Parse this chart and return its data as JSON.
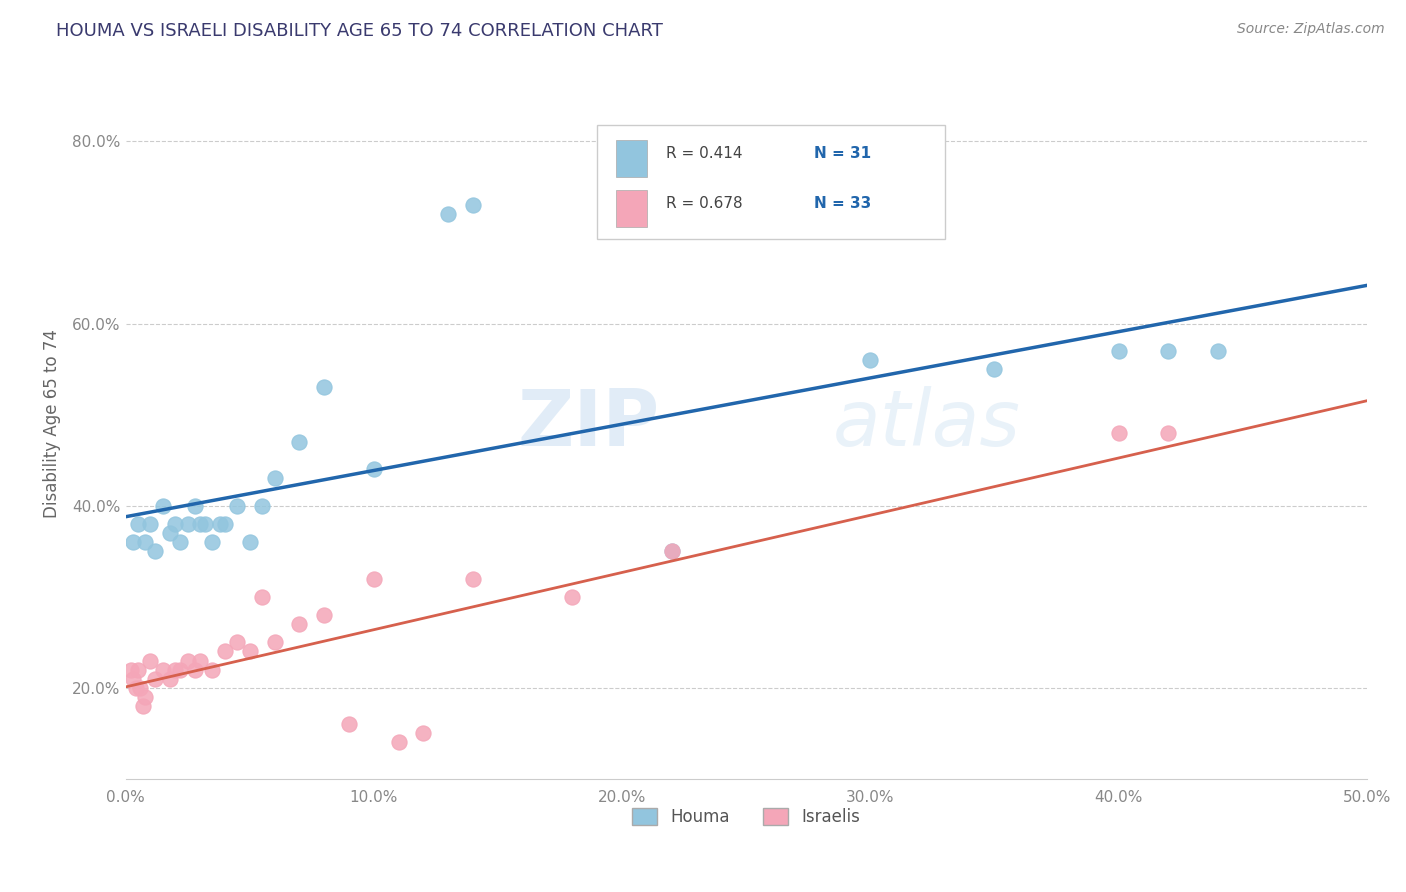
{
  "title": "HOUMA VS ISRAELI DISABILITY AGE 65 TO 74 CORRELATION CHART",
  "source_text": "Source: ZipAtlas.com",
  "ylabel": "Disability Age 65 to 74",
  "legend_label1": "Houma",
  "legend_label2": "Israelis",
  "legend_r1": "R = 0.414",
  "legend_n1": "N = 31",
  "legend_r2": "R = 0.678",
  "legend_n2": "N = 33",
  "xlim": [
    0.0,
    50.0
  ],
  "ylim": [
    10.0,
    88.0
  ],
  "xticks": [
    0,
    10,
    20,
    30,
    40,
    50
  ],
  "yticks": [
    20,
    40,
    60,
    80
  ],
  "blue_scatter_color": "#92c5de",
  "pink_scatter_color": "#f4a6b8",
  "blue_line_color": "#2166ac",
  "pink_line_color": "#d6604d",
  "watermark_color": "#c8d8e8",
  "title_color": "#3a3a6e",
  "source_color": "#888888",
  "axis_label_color": "#666666",
  "tick_color": "#888888",
  "grid_color": "#cccccc",
  "background_color": "#ffffff",
  "houma_x": [
    0.3,
    0.5,
    0.8,
    1.0,
    1.2,
    1.5,
    1.8,
    2.0,
    2.2,
    2.5,
    2.8,
    3.0,
    3.2,
    3.5,
    3.8,
    4.0,
    4.5,
    5.0,
    5.5,
    6.0,
    7.0,
    8.0,
    10.0,
    13.0,
    14.0,
    22.0,
    30.0,
    35.0,
    40.0,
    42.0,
    44.0
  ],
  "houma_y": [
    36.0,
    38.0,
    36.0,
    38.0,
    35.0,
    40.0,
    37.0,
    38.0,
    36.0,
    38.0,
    40.0,
    38.0,
    38.0,
    36.0,
    38.0,
    38.0,
    40.0,
    36.0,
    40.0,
    43.0,
    47.0,
    53.0,
    44.0,
    72.0,
    73.0,
    35.0,
    56.0,
    55.0,
    57.0,
    57.0,
    57.0
  ],
  "israeli_x": [
    0.2,
    0.3,
    0.4,
    0.5,
    0.6,
    0.7,
    0.8,
    1.0,
    1.2,
    1.5,
    1.8,
    2.0,
    2.2,
    2.5,
    2.8,
    3.0,
    3.5,
    4.0,
    4.5,
    5.0,
    5.5,
    6.0,
    7.0,
    8.0,
    9.0,
    10.0,
    11.0,
    12.0,
    14.0,
    18.0,
    22.0,
    40.0,
    42.0
  ],
  "israeli_y": [
    22.0,
    21.0,
    20.0,
    22.0,
    20.0,
    18.0,
    19.0,
    23.0,
    21.0,
    22.0,
    21.0,
    22.0,
    22.0,
    23.0,
    22.0,
    23.0,
    22.0,
    24.0,
    25.0,
    24.0,
    30.0,
    25.0,
    27.0,
    28.0,
    16.0,
    32.0,
    14.0,
    15.0,
    32.0,
    30.0,
    35.0,
    48.0,
    48.0
  ]
}
